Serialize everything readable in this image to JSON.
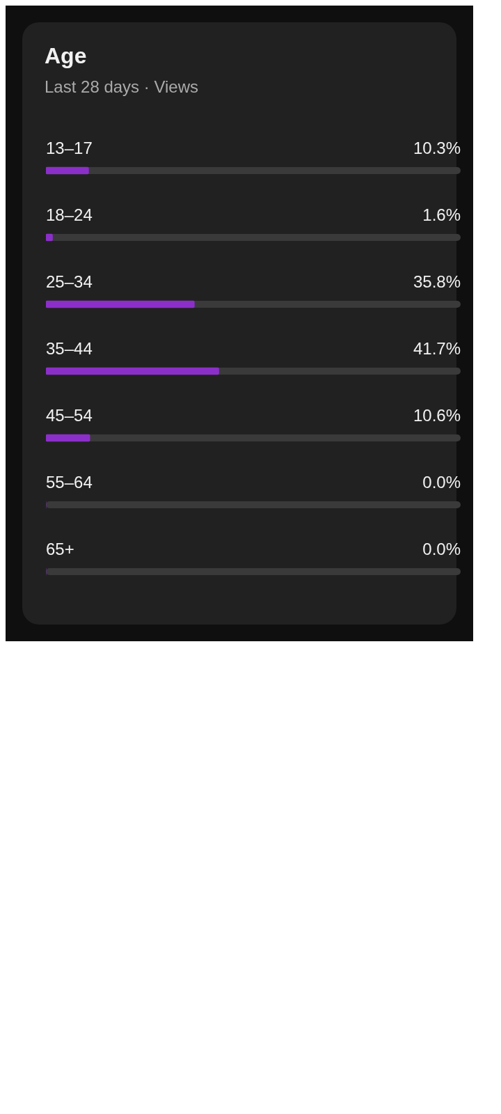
{
  "chart_data": {
    "type": "bar",
    "orientation": "horizontal",
    "title": "Age",
    "subtitle": "Last 28 days · Views",
    "categories": [
      "13–17",
      "18–24",
      "25–34",
      "35–44",
      "45–54",
      "55–64",
      "65+"
    ],
    "values": [
      10.3,
      1.6,
      35.8,
      41.7,
      10.6,
      0.0,
      0.0
    ],
    "value_labels": [
      "10.3%",
      "1.6%",
      "35.8%",
      "41.7%",
      "10.6%",
      "0.0%",
      "0.0%"
    ],
    "color": "#8b2fc9",
    "xlim": [
      0,
      100
    ],
    "tick_labels": false,
    "legend": false
  }
}
